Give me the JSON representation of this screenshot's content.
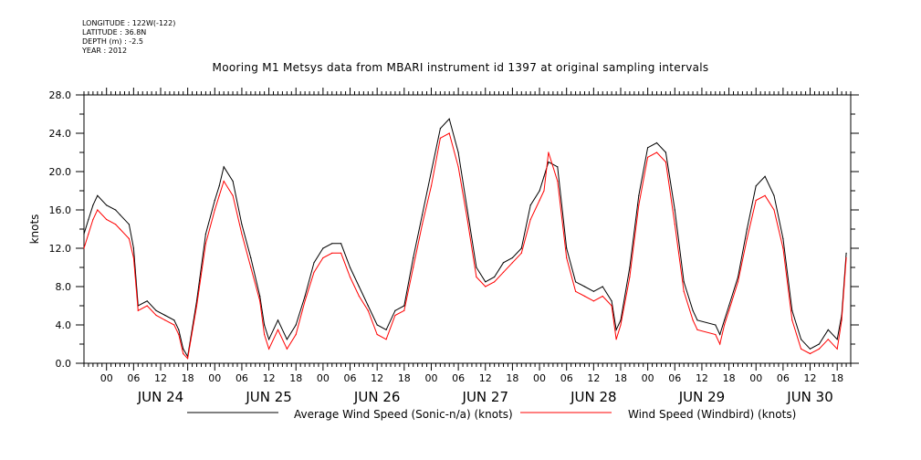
{
  "header": {
    "meta_lines": [
      "LONGITUDE : 122W(-122)",
      "LATITUDE : 36.8N",
      "DEPTH (m) : -2.5",
      "YEAR : 2012"
    ],
    "title": "Mooring M1 Metsys data from MBARI instrument id 1397 at original sampling intervals"
  },
  "chart_data": {
    "type": "line",
    "title": "Mooring M1 Metsys data from MBARI instrument id 1397 at original sampling intervals",
    "ylabel": "knots",
    "xlabel": "",
    "ylim": [
      0,
      28
    ],
    "yticks": [
      "0.0",
      "4.0",
      "8.0",
      "12.0",
      "16.0",
      "20.0",
      "24.0",
      "28.0"
    ],
    "xlim": [
      "2012-06-23T19:00",
      "2012-06-30T21:00"
    ],
    "xticks_hours": [
      "00",
      "06",
      "12",
      "18",
      "00",
      "06",
      "12",
      "18",
      "00",
      "06",
      "12",
      "18",
      "00",
      "06",
      "12",
      "18",
      "00",
      "06",
      "12",
      "18",
      "00",
      "06",
      "12",
      "18",
      "00",
      "06",
      "12",
      "18"
    ],
    "day_labels": [
      "JUN 24",
      "JUN 25",
      "JUN 26",
      "JUN 27",
      "JUN 28",
      "JUN 29",
      "JUN 30"
    ],
    "grid": false,
    "legend_position": "bottom",
    "colors": {
      "sonic": "#000000",
      "windbird": "#ff0000"
    },
    "series": [
      {
        "name": "Average Wind Speed (Sonic-n/a) (knots)",
        "color": "#000000",
        "x": [
          "2012-06-23T19:00",
          "2012-06-23T20:00",
          "2012-06-23T21:00",
          "2012-06-23T22:00",
          "2012-06-24T00:00",
          "2012-06-24T02:00",
          "2012-06-24T03:00",
          "2012-06-24T05:00",
          "2012-06-24T06:00",
          "2012-06-24T07:00",
          "2012-06-24T09:00",
          "2012-06-24T11:00",
          "2012-06-24T13:00",
          "2012-06-24T15:00",
          "2012-06-24T16:00",
          "2012-06-24T17:00",
          "2012-06-24T18:00",
          "2012-06-24T20:00",
          "2012-06-24T22:00",
          "2012-06-25T00:00",
          "2012-06-25T01:00",
          "2012-06-25T02:00",
          "2012-06-25T04:00",
          "2012-06-25T06:00",
          "2012-06-25T08:00",
          "2012-06-25T10:00",
          "2012-06-25T11:00",
          "2012-06-25T12:00",
          "2012-06-25T14:00",
          "2012-06-25T16:00",
          "2012-06-25T18:00",
          "2012-06-25T20:00",
          "2012-06-25T22:00",
          "2012-06-26T00:00",
          "2012-06-26T02:00",
          "2012-06-26T04:00",
          "2012-06-26T06:00",
          "2012-06-26T08:00",
          "2012-06-26T10:00",
          "2012-06-26T12:00",
          "2012-06-26T14:00",
          "2012-06-26T16:00",
          "2012-06-26T18:00",
          "2012-06-26T20:00",
          "2012-06-26T22:00",
          "2012-06-27T00:00",
          "2012-06-27T02:00",
          "2012-06-27T04:00",
          "2012-06-27T06:00",
          "2012-06-27T08:00",
          "2012-06-27T10:00",
          "2012-06-27T12:00",
          "2012-06-27T14:00",
          "2012-06-27T16:00",
          "2012-06-27T18:00",
          "2012-06-27T20:00",
          "2012-06-27T22:00",
          "2012-06-28T00:00",
          "2012-06-28T01:00",
          "2012-06-28T02:00",
          "2012-06-28T04:00",
          "2012-06-28T06:00",
          "2012-06-28T08:00",
          "2012-06-28T10:00",
          "2012-06-28T12:00",
          "2012-06-28T14:00",
          "2012-06-28T16:00",
          "2012-06-28T17:00",
          "2012-06-28T18:00",
          "2012-06-28T20:00",
          "2012-06-28T22:00",
          "2012-06-29T00:00",
          "2012-06-29T02:00",
          "2012-06-29T04:00",
          "2012-06-29T06:00",
          "2012-06-29T08:00",
          "2012-06-29T10:00",
          "2012-06-29T11:00",
          "2012-06-29T15:00",
          "2012-06-29T16:00",
          "2012-06-29T17:00",
          "2012-06-29T18:00",
          "2012-06-29T20:00",
          "2012-06-29T22:00",
          "2012-06-30T00:00",
          "2012-06-30T02:00",
          "2012-06-30T04:00",
          "2012-06-30T06:00",
          "2012-06-30T08:00",
          "2012-06-30T10:00",
          "2012-06-30T12:00",
          "2012-06-30T14:00",
          "2012-06-30T16:00",
          "2012-06-30T18:00",
          "2012-06-30T19:00",
          "2012-06-30T20:00"
        ],
        "values": [
          13.5,
          15.0,
          16.5,
          17.5,
          16.5,
          16.0,
          15.5,
          14.5,
          12.0,
          6.0,
          6.5,
          5.5,
          5.0,
          4.5,
          3.5,
          1.5,
          0.7,
          6.5,
          13.5,
          17.0,
          18.5,
          20.5,
          19.0,
          14.5,
          11.0,
          7.0,
          4.0,
          2.5,
          4.5,
          2.5,
          4.0,
          7.0,
          10.5,
          12.0,
          12.5,
          12.5,
          10.0,
          8.0,
          6.0,
          4.0,
          3.5,
          5.5,
          6.0,
          11.0,
          15.5,
          20.0,
          24.5,
          25.5,
          22.0,
          16.0,
          10.0,
          8.5,
          9.0,
          10.5,
          11.0,
          12.0,
          16.5,
          18.0,
          19.5,
          21.0,
          20.5,
          12.0,
          8.5,
          8.0,
          7.5,
          8.0,
          6.5,
          3.5,
          4.5,
          10.0,
          17.5,
          22.5,
          23.0,
          22.0,
          16.0,
          8.5,
          5.5,
          4.5,
          4.0,
          3.0,
          4.5,
          6.0,
          9.0,
          14.0,
          18.5,
          19.5,
          17.5,
          13.0,
          5.5,
          2.5,
          1.5,
          2.0,
          3.5,
          2.5,
          5.0,
          11.5
        ]
      },
      {
        "name": "Wind Speed (Windbird) (knots)",
        "color": "#ff0000",
        "x": [
          "2012-06-23T19:00",
          "2012-06-23T20:00",
          "2012-06-23T21:00",
          "2012-06-23T22:00",
          "2012-06-24T00:00",
          "2012-06-24T02:00",
          "2012-06-24T03:00",
          "2012-06-24T05:00",
          "2012-06-24T06:00",
          "2012-06-24T07:00",
          "2012-06-24T09:00",
          "2012-06-24T11:00",
          "2012-06-24T13:00",
          "2012-06-24T15:00",
          "2012-06-24T16:00",
          "2012-06-24T17:00",
          "2012-06-24T18:00",
          "2012-06-24T20:00",
          "2012-06-24T22:00",
          "2012-06-25T00:00",
          "2012-06-25T01:00",
          "2012-06-25T02:00",
          "2012-06-25T04:00",
          "2012-06-25T06:00",
          "2012-06-25T08:00",
          "2012-06-25T10:00",
          "2012-06-25T11:00",
          "2012-06-25T12:00",
          "2012-06-25T14:00",
          "2012-06-25T16:00",
          "2012-06-25T18:00",
          "2012-06-25T20:00",
          "2012-06-25T22:00",
          "2012-06-26T00:00",
          "2012-06-26T02:00",
          "2012-06-26T04:00",
          "2012-06-26T06:00",
          "2012-06-26T08:00",
          "2012-06-26T10:00",
          "2012-06-26T12:00",
          "2012-06-26T14:00",
          "2012-06-26T16:00",
          "2012-06-26T18:00",
          "2012-06-26T20:00",
          "2012-06-26T22:00",
          "2012-06-27T00:00",
          "2012-06-27T02:00",
          "2012-06-27T04:00",
          "2012-06-27T06:00",
          "2012-06-27T08:00",
          "2012-06-27T10:00",
          "2012-06-27T12:00",
          "2012-06-27T14:00",
          "2012-06-27T16:00",
          "2012-06-27T18:00",
          "2012-06-27T20:00",
          "2012-06-27T22:00",
          "2012-06-28T00:00",
          "2012-06-28T01:00",
          "2012-06-28T02:00",
          "2012-06-28T04:00",
          "2012-06-28T06:00",
          "2012-06-28T08:00",
          "2012-06-28T10:00",
          "2012-06-28T12:00",
          "2012-06-28T14:00",
          "2012-06-28T16:00",
          "2012-06-28T17:00",
          "2012-06-28T18:00",
          "2012-06-28T20:00",
          "2012-06-28T22:00",
          "2012-06-29T00:00",
          "2012-06-29T02:00",
          "2012-06-29T04:00",
          "2012-06-29T06:00",
          "2012-06-29T08:00",
          "2012-06-29T10:00",
          "2012-06-29T11:00",
          "2012-06-29T15:00",
          "2012-06-29T16:00",
          "2012-06-29T17:00",
          "2012-06-29T18:00",
          "2012-06-29T20:00",
          "2012-06-29T22:00",
          "2012-06-30T00:00",
          "2012-06-30T02:00",
          "2012-06-30T04:00",
          "2012-06-30T06:00",
          "2012-06-30T08:00",
          "2012-06-30T10:00",
          "2012-06-30T12:00",
          "2012-06-30T14:00",
          "2012-06-30T16:00",
          "2012-06-30T18:00",
          "2012-06-30T19:00",
          "2012-06-30T20:00"
        ],
        "values": [
          12.0,
          13.5,
          15.0,
          16.0,
          15.0,
          14.5,
          14.0,
          13.0,
          11.0,
          5.5,
          6.0,
          5.0,
          4.5,
          4.0,
          3.0,
          1.0,
          0.5,
          6.0,
          12.5,
          16.0,
          17.5,
          19.0,
          17.5,
          13.5,
          10.0,
          6.5,
          3.0,
          1.5,
          3.5,
          1.5,
          3.0,
          6.5,
          9.5,
          11.0,
          11.5,
          11.5,
          9.0,
          7.0,
          5.5,
          3.0,
          2.5,
          5.0,
          5.5,
          10.0,
          14.5,
          18.5,
          23.5,
          24.0,
          20.5,
          15.0,
          9.0,
          8.0,
          8.5,
          9.5,
          10.5,
          11.5,
          15.0,
          17.0,
          18.0,
          22.0,
          19.0,
          11.0,
          7.5,
          7.0,
          6.5,
          7.0,
          6.0,
          2.5,
          4.0,
          9.0,
          16.5,
          21.5,
          22.0,
          21.0,
          14.5,
          7.5,
          4.5,
          3.5,
          3.0,
          2.0,
          4.0,
          5.5,
          8.5,
          13.0,
          17.0,
          17.5,
          16.0,
          12.0,
          4.5,
          1.5,
          1.0,
          1.5,
          2.5,
          1.5,
          4.5,
          11.0
        ]
      }
    ]
  }
}
